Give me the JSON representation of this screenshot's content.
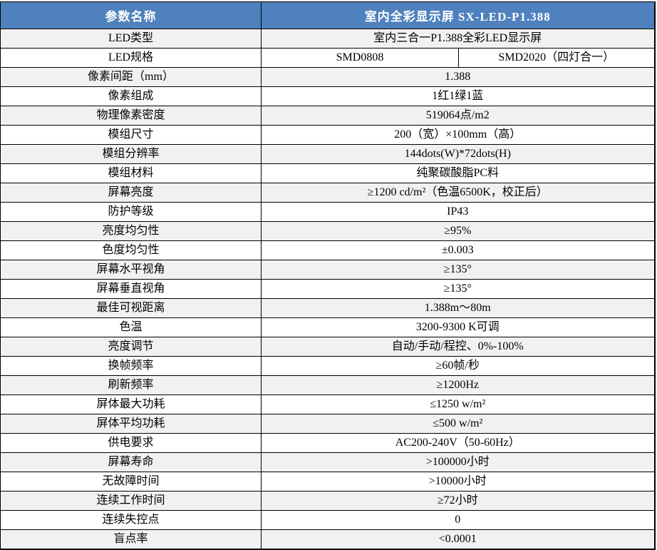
{
  "header": {
    "param_label": "参数名称",
    "product_label": "室内全彩显示屏 SX-LED-P1.388"
  },
  "rows": [
    {
      "label": "LED类型",
      "values": [
        "室内三合一P1.388全彩LED显示屏"
      ]
    },
    {
      "label": "LED规格",
      "values": [
        "SMD0808",
        "SMD2020（四灯合一）"
      ]
    },
    {
      "label": "像素间距（mm）",
      "values": [
        "1.388"
      ]
    },
    {
      "label": "像素组成",
      "values": [
        "1红1绿1蓝"
      ]
    },
    {
      "label": "物理像素密度",
      "values": [
        "519064点/m2"
      ]
    },
    {
      "label": "模组尺寸",
      "values": [
        "200（宽）×100mm（高）"
      ]
    },
    {
      "label": "模组分辨率",
      "values": [
        "144dots(W)*72dots(H)"
      ]
    },
    {
      "label": "模组材料",
      "values": [
        "纯聚碳酸脂PC料"
      ]
    },
    {
      "label": "屏幕亮度",
      "values": [
        "≥1200 cd/m²（色温6500K，校正后）"
      ]
    },
    {
      "label": "防护等级",
      "values": [
        "IP43"
      ]
    },
    {
      "label": "亮度均匀性",
      "values": [
        "≥95%"
      ]
    },
    {
      "label": "色度均匀性",
      "values": [
        "±0.003"
      ]
    },
    {
      "label": "屏幕水平视角",
      "values": [
        "≥135°"
      ]
    },
    {
      "label": "屏幕垂直视角",
      "values": [
        "≥135°"
      ]
    },
    {
      "label": "最佳可视距离",
      "values": [
        "1.388m～80m"
      ]
    },
    {
      "label": "色温",
      "values": [
        "3200-9300 K可调"
      ]
    },
    {
      "label": "亮度调节",
      "values": [
        "自动/手动/程控、0%-100%"
      ]
    },
    {
      "label": "换帧频率",
      "values": [
        "≥60帧/秒"
      ]
    },
    {
      "label": "刷新频率",
      "values": [
        "≥1200Hz"
      ]
    },
    {
      "label": "屏体最大功耗",
      "values": [
        "≤1250 w/m²"
      ]
    },
    {
      "label": "屏体平均功耗",
      "values": [
        "≤500 w/m²"
      ]
    },
    {
      "label": "供电要求",
      "values": [
        "AC200-240V（50-60Hz）"
      ]
    },
    {
      "label": "屏幕寿命",
      "values": [
        ">100000小时"
      ]
    },
    {
      "label": "无故障时间",
      "values": [
        ">10000小时"
      ]
    },
    {
      "label": "连续工作时间",
      "values": [
        "≥72小时"
      ]
    },
    {
      "label": "连续失控点",
      "values": [
        "0"
      ]
    },
    {
      "label": "盲点率",
      "values": [
        "<0.0001"
      ]
    }
  ],
  "colors": {
    "header_bg": "#4E81BD",
    "header_text": "#FFFFFF",
    "row_alt_bg": "#F1F1F1",
    "row_bg": "#FFFFFF",
    "border": "#000000"
  }
}
